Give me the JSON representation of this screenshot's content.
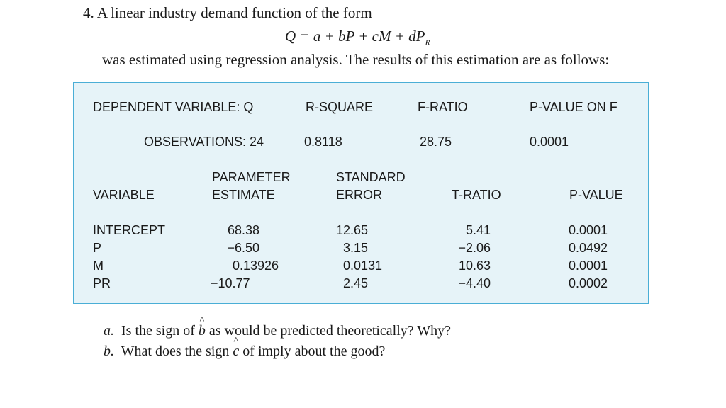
{
  "problem": {
    "number": "4.",
    "lead": "A linear industry demand function of the form",
    "equation": {
      "main": "Q = a + bP + cM + dP",
      "subscript": "R"
    },
    "intro": "was estimated using regression analysis. The results of this estimation are as follows:"
  },
  "regression": {
    "summary_headers": [
      "DEPENDENT VARIABLE: Q",
      "R-SQUARE",
      "F-RATIO",
      "P-VALUE ON F"
    ],
    "observations_label": "OBSERVATIONS: 24",
    "summary_values": [
      "0.8118",
      "28.75",
      "0.0001"
    ],
    "column_headers": {
      "variable": "VARIABLE",
      "parameter_estimate": [
        "PARAMETER",
        "ESTIMATE"
      ],
      "standard_error": [
        "STANDARD",
        "ERROR"
      ],
      "t_ratio": "T-RATIO",
      "p_value": "P-VALUE"
    },
    "rows": [
      {
        "variable": "INTERCEPT",
        "estimate": "68.38",
        "std_error": "12.65",
        "t_ratio": "5.41",
        "p_value": "0.0001"
      },
      {
        "variable": "P",
        "estimate": "−6.50",
        "std_error": "3.15",
        "t_ratio": "−2.06",
        "p_value": "0.0492"
      },
      {
        "variable": "M",
        "estimate": "0.13926",
        "std_error": "0.0131",
        "t_ratio": "10.63",
        "p_value": "0.0001"
      },
      {
        "variable": "PR",
        "estimate": "−10.77",
        "std_error": "2.45",
        "t_ratio": "−4.40",
        "p_value": "0.0002"
      }
    ]
  },
  "questions": [
    {
      "label": "a.",
      "before": "Is the sign of",
      "hat_symbol": "b",
      "after": "as would be predicted theoretically? Why?"
    },
    {
      "label": "b.",
      "before": "What does the sign",
      "hat_symbol": "c",
      "after": "of imply about the good?"
    }
  ]
}
